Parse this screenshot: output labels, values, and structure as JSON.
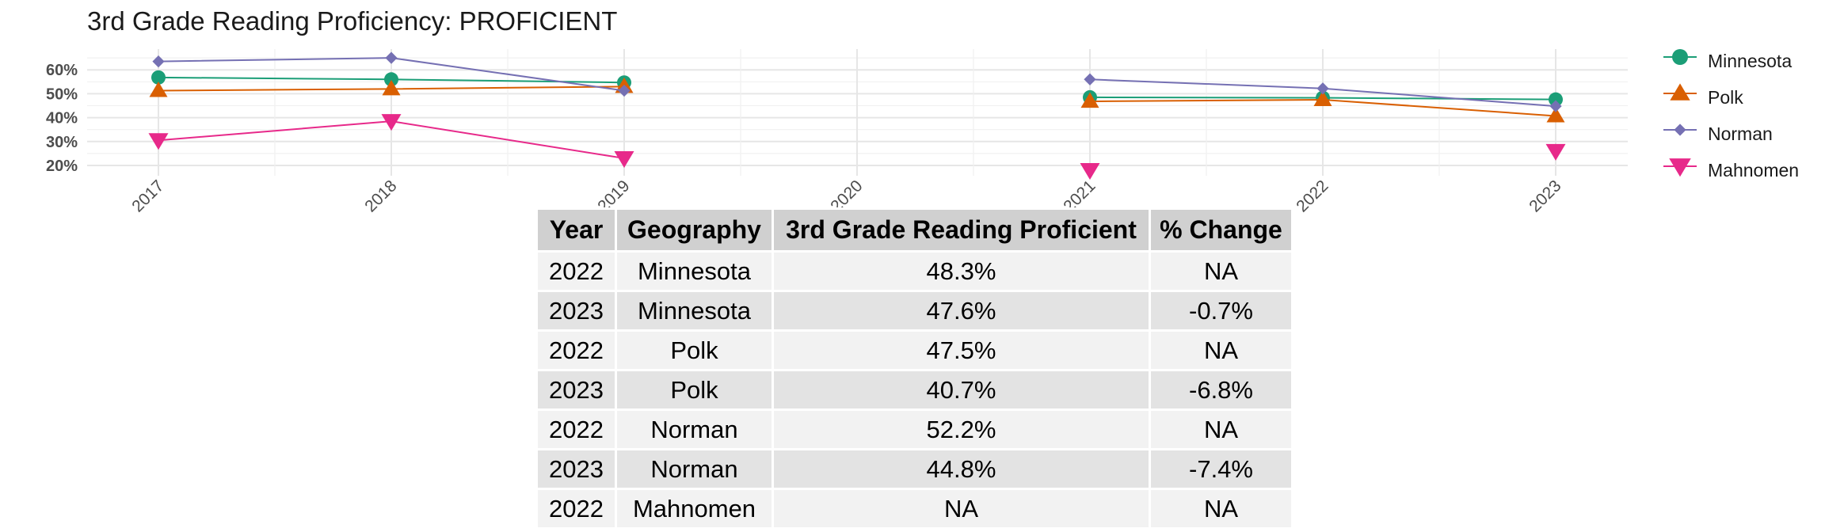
{
  "chart_data": {
    "type": "line",
    "title": "3rd Grade Reading Proficiency: PROFICIENT",
    "xlabel": "",
    "ylabel": "",
    "x": [
      "2017",
      "2018",
      "2019",
      "2020",
      "2021",
      "2022",
      "2023"
    ],
    "yticks": [
      "20%",
      "30%",
      "40%",
      "50%",
      "60%"
    ],
    "ylim": [
      18,
      67
    ],
    "grid": true,
    "legend_position": "right",
    "series": [
      {
        "name": "Minnesota",
        "color": "#1B9E77",
        "marker": "circle",
        "values": [
          56.8,
          56.0,
          54.7,
          null,
          48.5,
          48.3,
          47.6
        ]
      },
      {
        "name": "Polk",
        "color": "#D95F02",
        "marker": "triangle-up",
        "values": [
          51.3,
          52.0,
          53.0,
          null,
          46.8,
          47.5,
          40.7
        ]
      },
      {
        "name": "Norman",
        "color": "#7570B3",
        "marker": "diamond",
        "values": [
          63.5,
          65.0,
          51.3,
          null,
          56.0,
          52.2,
          44.8
        ]
      },
      {
        "name": "Mahnomen",
        "color": "#E7298A",
        "marker": "triangle-down",
        "values": [
          30.5,
          38.5,
          23.0,
          null,
          18.0,
          null,
          26.0
        ]
      }
    ]
  },
  "table": {
    "headers": [
      "Year",
      "Geography",
      "3rd Grade Reading Proficient",
      "% Change"
    ],
    "rows": [
      [
        "2022",
        "Minnesota",
        "48.3%",
        "NA"
      ],
      [
        "2023",
        "Minnesota",
        "47.6%",
        "-0.7%"
      ],
      [
        "2022",
        "Polk",
        "47.5%",
        "NA"
      ],
      [
        "2023",
        "Polk",
        "40.7%",
        "-6.8%"
      ],
      [
        "2022",
        "Norman",
        "52.2%",
        "NA"
      ],
      [
        "2023",
        "Norman",
        "44.8%",
        "-7.4%"
      ],
      [
        "2022",
        "Mahnomen",
        "NA",
        "NA"
      ]
    ]
  }
}
